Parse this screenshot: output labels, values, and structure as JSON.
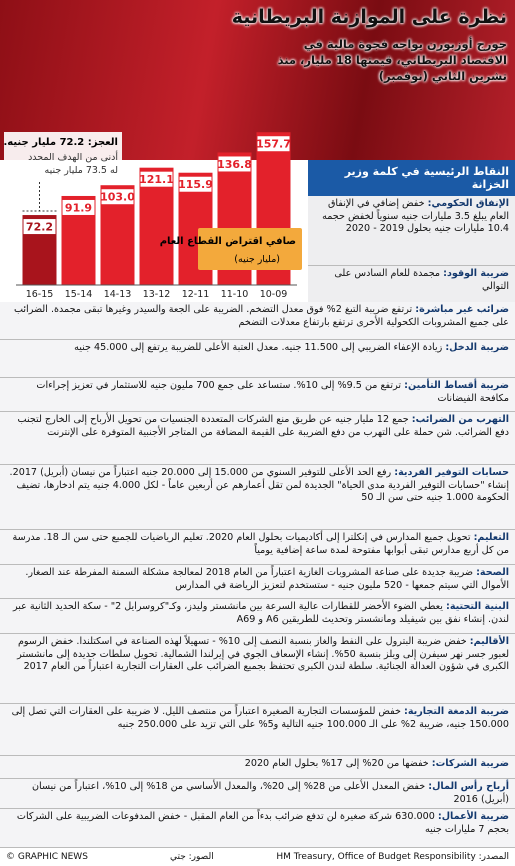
{
  "header": {
    "title": "نظرة على الموازنة البريطانية",
    "subtitle": "جورج أوزبورن يواجه فجوة مالية في الاقتصاد البريطاني، قيمتها 18 مليار، منذ تشرين الثاني (نوفمبر)"
  },
  "chart_data": {
    "type": "bar",
    "legend_title": "صافي اقتراض القطاع العام",
    "legend_unit": "(مليار جنيه)",
    "annotation_title": "العجز: 72.2 مليار جنيه.",
    "annotation_text": "أدنى من الهدف المحدد له 73.5 مليار جنيه",
    "categories": [
      "16-15",
      "15-14",
      "14-13",
      "13-12",
      "12-11",
      "11-10",
      "10-09"
    ],
    "values": [
      72.2,
      91.9,
      103.0,
      121.1,
      115.9,
      136.8,
      157.7
    ],
    "value_labels": [
      "72.2",
      "91.9",
      "103.0",
      "121.1",
      "115.9",
      "136.8",
      "157.7"
    ],
    "colors": [
      "#a8141c",
      "#e3212b",
      "#e3212b",
      "#e3212b",
      "#e3212b",
      "#e3212b",
      "#e3212b"
    ],
    "ylim": [
      0,
      160
    ]
  },
  "panel_title": "النقاط الرئيسية في كلمة وزير الخزانة",
  "sections": [
    {
      "heading": "الإنفاق الحكومي:",
      "text": "خفض إضافي في الإنفاق العام يبلغ 3.5 مليارات جنيه سنوياً لخفض حجمه 10.4 مليارات جنيه بحلول 2019 - 2020"
    },
    {
      "heading": "ضريبة الوقود:",
      "text": "مجمدة للعام السادس على التوالي"
    },
    {
      "heading": "ضرائب غير مباشرة:",
      "text": "ترتفع ضريبة التبغ 2% فوق معدل التضخم. الضريبة على الجعة والسيدر وغيرها تبقى مجمدة. الضرائب على جميع المشروبات الكحولية الأخرى ترتفع بارتفاع معدلات التضخم"
    },
    {
      "heading": "ضريبة الدخل:",
      "text": "زيادة الإعفاء الضريبي إلى 11.500 جنيه. معدل العتبة الأعلى للضريبة يرتفع إلى 45.000 جنيه"
    },
    {
      "heading": "ضريبة أقساط التأمين:",
      "text": "ترتفع من 9.5% إلى 10%. ستساعد على جمع 700 مليون جنيه للاستثمار في تعزيز إجراءات مكافحة الفيضانات"
    },
    {
      "heading": "التهرب من الضرائب:",
      "text": "جمع 12 مليار جنيه عن طريق منع الشركات المتعددة الجنسيات من تحويل الأرباح إلى الخارج لتجنب دفع الضرائب. شن حملة على التهرب من دفع الضريبة على القيمة المضافة من المتاجر الأجنبية المتوفرة على الإنترنت"
    },
    {
      "heading": "حسابات التوفير الفردية:",
      "text": "رفع الحد الأعلى للتوفير السنوي من 15.000 إلى 20.000 جنيه اعتباراً من نيسان (أبريل) 2017. إنشاء \"حسابات التوفير الفردية مدى الحياة\" الجديدة لمن تقل أعمارهم عن أربعين عاماً - لكل 4.000 جنيه يتم ادخارها، تضيف الحكومة 1.000 جنيه حتى سن الـ 50"
    },
    {
      "heading": "التعليم:",
      "text": "تحويل جميع المدارس في إنكلترا إلى أكاديميات بحلول العام 2020. تعليم الرياضيات للجميع حتى سن الـ 18. مدرسة من كل أربع مدارس تبقى أبوابها مفتوحة لمدة ساعة إضافية يومياً"
    },
    {
      "heading": "الصحة:",
      "text": "ضريبة جديدة على صناعة المشروبات الغازية اعتباراً من العام 2018 لمعالجة مشكلة السمنة المفرطة عند الصغار. الأموال التي سيتم جمعها - 520 مليون جنيه - ستستخدم لتعزيز الرياضة في المدارس"
    },
    {
      "heading": "البنية التحتية:",
      "text": "يعطي الضوء الأخضر للقطارات عالية السرعة بين مانشستر وليدز، وكـ\"كروسرايل 2\" - سكة الحديد الثانية عبر لندن. إنشاء نفق بين شيفيلد ومانشستر وتحديث للطريقين A6 و A69"
    },
    {
      "heading": "الأقاليم:",
      "text": "خفض ضريبة البترول على النفط والغاز بنسبة النصف إلى 10% - تسهيلاً لهذه الصناعة في اسكتلندا. خفض الرسوم لعبور جسر نهر سيفرن إلى ويلز بنسبة 50%. إنشاء الإسعاف الجوي في إيرلندا الشمالية. تحويل سلطات جديدة إلى مانشستر الكبرى في شؤون العدالة الجنائية. سلطة لندن الكبرى تحتفظ بجميع الضرائب على العقارات التجارية اعتباراً من العام 2017"
    },
    {
      "heading": "ضريبة الدمغة التجارية:",
      "text": "خفض للمؤسسات التجارية الصغيرة اعتباراً من منتصف الليل. لا ضريبة على العقارات التي تصل إلى 150.000 جنيه، ضريبة 2% على الـ 100.000 جنيه التالية و5% على التي تزيد على 250.000 جنيه"
    },
    {
      "heading": "ضريبة الشركات:",
      "text": "خفضها من 20% إلى 17% بحلول العام 2020"
    },
    {
      "heading": "أرباح رأس المال:",
      "text": "خفض المعدل الأعلى من 28% إلى 20%، والمعدل الأساسي من 18% إلى 10%، اعتباراً من نيسان (أبريل) 2016"
    },
    {
      "heading": "ضريبة الأعمال:",
      "text": "630.000 شركة صغيرة لن تدفع ضرائب بدءاً من العام المقبل - خفض المدفوعات الضريبية على الشركات بحجم 7 مليارات جنيه"
    }
  ],
  "footer": {
    "copyright": "© GRAPHIC NEWS",
    "photos": "الصور: جتي",
    "source": "المصدر: HM Treasury, Office of Budget Responsibility"
  }
}
